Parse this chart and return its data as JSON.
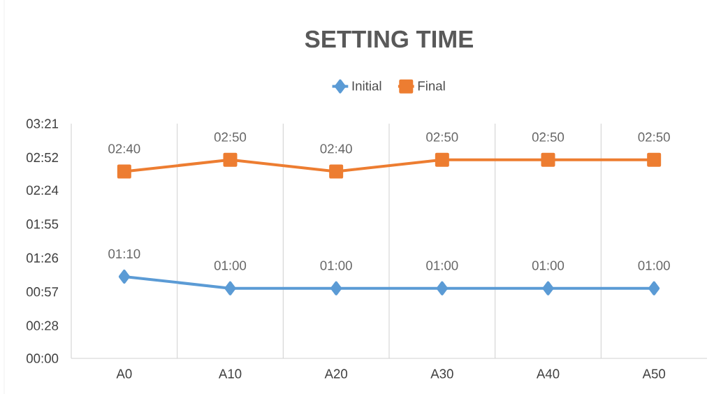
{
  "chart_data": {
    "type": "line",
    "title": "SETTING TIME",
    "categories": [
      "A0",
      "A10",
      "A20",
      "A30",
      "A40",
      "A50"
    ],
    "series": [
      {
        "name": "Initial",
        "color": "#5b9bd5",
        "marker": "diamond",
        "values": [
          1.1667,
          1.0,
          1.0,
          1.0,
          1.0,
          1.0
        ],
        "value_labels": [
          "01:10",
          "01:00",
          "01:00",
          "01:00",
          "01:00",
          "01:00"
        ]
      },
      {
        "name": "Final",
        "color": "#ed7d31",
        "marker": "square",
        "values": [
          2.6667,
          2.8333,
          2.6667,
          2.8333,
          2.8333,
          2.8333
        ],
        "value_labels": [
          "02:40",
          "02:50",
          "02:40",
          "02:50",
          "02:50",
          "02:50"
        ]
      }
    ],
    "ylim": [
      0,
      3.35
    ],
    "yticks": [
      {
        "value": 0,
        "label": "00:00"
      },
      {
        "value": 0.4667,
        "label": "00:28"
      },
      {
        "value": 0.95,
        "label": "00:57"
      },
      {
        "value": 1.4333,
        "label": "01:26"
      },
      {
        "value": 1.9167,
        "label": "01:55"
      },
      {
        "value": 2.4,
        "label": "02:24"
      },
      {
        "value": 2.8667,
        "label": "02:52"
      },
      {
        "value": 3.35,
        "label": "03:21"
      }
    ],
    "grid": "x",
    "legend": "top",
    "line_style": "solid"
  }
}
